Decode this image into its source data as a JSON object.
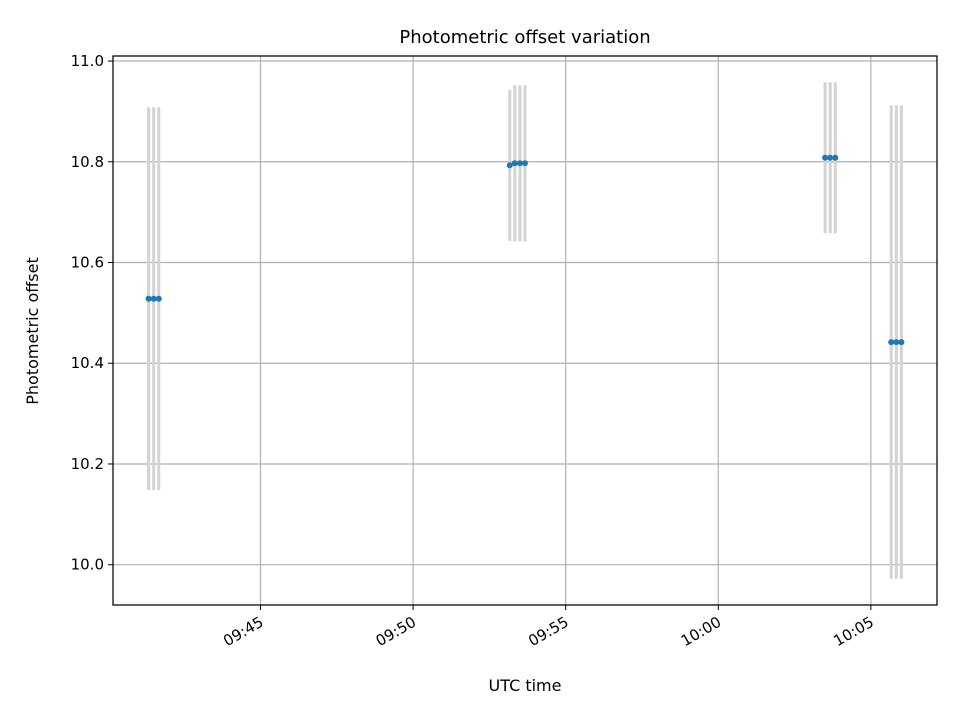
{
  "chart_data": {
    "type": "scatter",
    "title": "Photometric offset variation",
    "xlabel": "UTC time",
    "ylabel": "Photometric offset",
    "x_ticks": [
      "09:45",
      "09:50",
      "09:55",
      "10:00",
      "10:05"
    ],
    "y_ticks": [
      "10.0",
      "10.2",
      "10.4",
      "10.6",
      "10.8",
      "11.0"
    ],
    "xlim": [
      "09:40:10",
      "10:07:10"
    ],
    "ylim": [
      9.92,
      11.01
    ],
    "grid": true,
    "marker_color": "#1f77b4",
    "errorbar_color": "#d3d3d3",
    "series": [
      {
        "points": [
          {
            "x": "09:41:20",
            "y": 10.528,
            "yerr": 0.38
          },
          {
            "x": "09:41:30",
            "y": 10.528,
            "yerr": 0.38
          },
          {
            "x": "09:41:40",
            "y": 10.528,
            "yerr": 0.38
          },
          {
            "x": "09:53:10",
            "y": 10.793,
            "yerr": 0.15
          },
          {
            "x": "09:53:20",
            "y": 10.797,
            "yerr": 0.155
          },
          {
            "x": "09:53:30",
            "y": 10.797,
            "yerr": 0.155
          },
          {
            "x": "09:53:40",
            "y": 10.797,
            "yerr": 0.155
          },
          {
            "x": "10:03:30",
            "y": 10.808,
            "yerr": 0.15
          },
          {
            "x": "10:03:40",
            "y": 10.808,
            "yerr": 0.15
          },
          {
            "x": "10:03:50",
            "y": 10.808,
            "yerr": 0.15
          },
          {
            "x": "10:05:40",
            "y": 10.442,
            "yerr": 0.47
          },
          {
            "x": "10:05:50",
            "y": 10.442,
            "yerr": 0.47
          },
          {
            "x": "10:06:00",
            "y": 10.442,
            "yerr": 0.47
          }
        ]
      }
    ]
  }
}
